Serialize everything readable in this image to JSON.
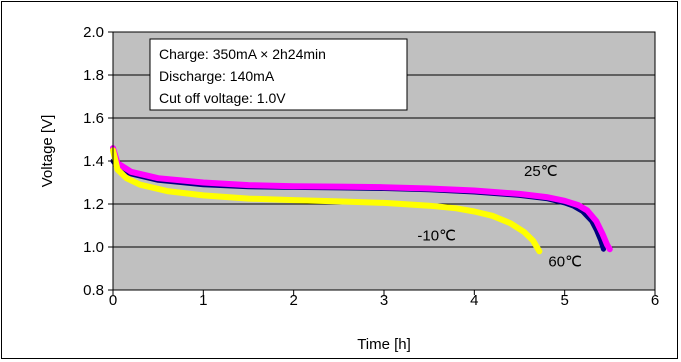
{
  "chart_data": {
    "type": "line",
    "xlabel": "Time [h]",
    "ylabel": "Voltage [V]",
    "xlim": [
      0,
      6
    ],
    "ylim": [
      0.8,
      2.0
    ],
    "xticks": [
      "0",
      "1",
      "2",
      "3",
      "4",
      "5",
      "6"
    ],
    "yticks": [
      "0.8",
      "1.0",
      "1.2",
      "1.4",
      "1.6",
      "1.8",
      "2.0"
    ],
    "grid": "horizontal",
    "background": "#c0c0c0",
    "notes": [
      "Charge: 350mA × 2h24min",
      "Discharge: 140mA",
      "Cut off voltage: 1.0V"
    ],
    "series": [
      {
        "name": "60℃",
        "color": "#00007f",
        "x": [
          0.0,
          0.05,
          0.2,
          0.5,
          1.0,
          1.5,
          2.0,
          2.5,
          3.0,
          3.5,
          4.0,
          4.5,
          4.8,
          5.0,
          5.1,
          5.2,
          5.3,
          5.35,
          5.4,
          5.43
        ],
        "y": [
          1.4,
          1.37,
          1.34,
          1.31,
          1.29,
          1.28,
          1.277,
          1.275,
          1.272,
          1.266,
          1.256,
          1.24,
          1.225,
          1.205,
          1.19,
          1.165,
          1.12,
          1.08,
          1.03,
          0.99
        ]
      },
      {
        "name": "25℃",
        "color": "#ff00ff",
        "x": [
          0.0,
          0.05,
          0.2,
          0.5,
          1.0,
          1.5,
          2.0,
          2.5,
          3.0,
          3.5,
          4.0,
          4.5,
          4.8,
          5.0,
          5.15,
          5.25,
          5.35,
          5.42,
          5.47,
          5.5
        ],
        "y": [
          1.46,
          1.39,
          1.35,
          1.32,
          1.3,
          1.288,
          1.283,
          1.281,
          1.278,
          1.272,
          1.263,
          1.247,
          1.232,
          1.215,
          1.195,
          1.17,
          1.12,
          1.06,
          1.01,
          0.99
        ]
      },
      {
        "name": "-10℃",
        "color": "#ffff00",
        "x": [
          0.0,
          0.05,
          0.15,
          0.3,
          0.6,
          1.0,
          1.5,
          2.0,
          2.5,
          3.0,
          3.5,
          3.8,
          4.0,
          4.2,
          4.4,
          4.55,
          4.65,
          4.72
        ],
        "y": [
          1.45,
          1.36,
          1.32,
          1.29,
          1.26,
          1.24,
          1.225,
          1.218,
          1.212,
          1.205,
          1.192,
          1.18,
          1.165,
          1.145,
          1.11,
          1.07,
          1.03,
          0.98
        ]
      }
    ],
    "series_labels": [
      {
        "text": "25℃",
        "x": 4.55,
        "y": 1.33
      },
      {
        "text": "-10℃",
        "x": 3.37,
        "y": 1.03
      },
      {
        "text": "60℃",
        "x": 4.82,
        "y": 0.91
      }
    ]
  }
}
